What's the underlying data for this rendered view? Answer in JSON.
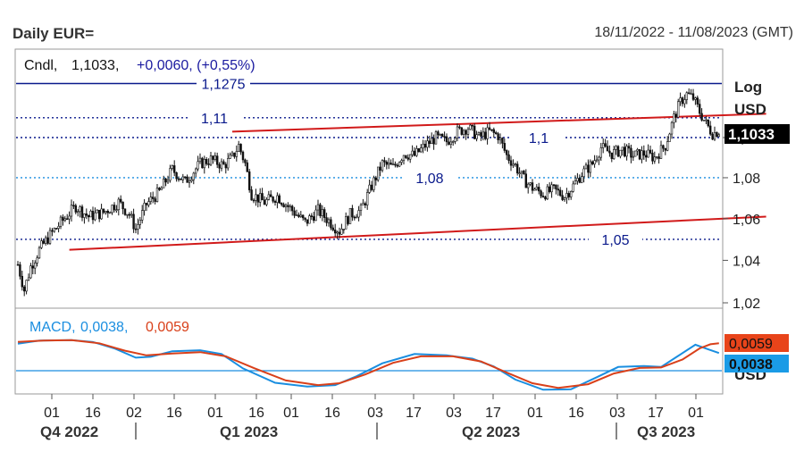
{
  "header": {
    "title": "Daily EUR=",
    "date_range": "18/11/2022 - 11/08/2023 (GMT)"
  },
  "main_panel": {
    "legend_prefix": "Cndl,",
    "legend_close": "1,1033,",
    "legend_change": "+0,0060, (+0,55%)",
    "log_label": "Log",
    "currency_label": "USD",
    "price_tag": "1,1033",
    "level_labels": {
      "l1": "1,1275",
      "l2": "1,11",
      "l3": "1,1",
      "l4": "1,08",
      "l5": "1,05"
    }
  },
  "macd_panel": {
    "legend_name": "MACD,",
    "legend_macd": "0,0038,",
    "legend_signal": "0,0059",
    "tag_signal": "0,0059",
    "tag_macd": "0,0038",
    "currency_label": "USD"
  },
  "colors": {
    "candles": "#111111",
    "level_line": "#0a1a8c",
    "trend_line": "#d11a1a",
    "macd_line": "#1a8ee0",
    "signal_line": "#d9401a",
    "price_tag_bg": "#000000",
    "signal_tag_bg": "#e8441a",
    "macd_tag_bg": "#1a9be6"
  },
  "chart_data": {
    "type": "candlestick",
    "title": "Daily EUR=",
    "y_scale": "log",
    "ylim": [
      1.014,
      1.136
    ],
    "y_ticks": [
      "1,02",
      "1,04",
      "1,06",
      "1,08",
      "1,1"
    ],
    "x_ticks": [
      "01",
      "16",
      "02",
      "16",
      "01",
      "16",
      "01",
      "16",
      "03",
      "17",
      "03",
      "17",
      "01",
      "16",
      "03",
      "17",
      "01"
    ],
    "period_labels": [
      "Q4 2022",
      "Q1 2023",
      "Q2 2023",
      "Q3 2023"
    ],
    "last_close": 1.1033,
    "change": 0.006,
    "change_pct": 0.55,
    "horizontal_levels": [
      {
        "value": 1.1275,
        "style": "solid",
        "label": "1,1275"
      },
      {
        "value": 1.11,
        "style": "dotted",
        "label": "1,11"
      },
      {
        "value": 1.1,
        "style": "dotted",
        "label": "1,1"
      },
      {
        "value": 1.08,
        "style": "dotted",
        "label": "1,08"
      },
      {
        "value": 1.05,
        "style": "dotted",
        "label": "1,05"
      }
    ],
    "close_path": [
      [
        0,
        1.038
      ],
      [
        3,
        1.026
      ],
      [
        6,
        1.037
      ],
      [
        10,
        1.045
      ],
      [
        15,
        1.052
      ],
      [
        20,
        1.058
      ],
      [
        27,
        1.066
      ],
      [
        33,
        1.061
      ],
      [
        40,
        1.063
      ],
      [
        47,
        1.068
      ],
      [
        52,
        1.062
      ],
      [
        55,
        1.055
      ],
      [
        60,
        1.067
      ],
      [
        66,
        1.073
      ],
      [
        72,
        1.084
      ],
      [
        78,
        1.078
      ],
      [
        85,
        1.087
      ],
      [
        90,
        1.089
      ],
      [
        96,
        1.086
      ],
      [
        100,
        1.09
      ],
      [
        103,
        1.096
      ],
      [
        106,
        1.087
      ],
      [
        109,
        1.072
      ],
      [
        115,
        1.068
      ],
      [
        121,
        1.071
      ],
      [
        128,
        1.064
      ],
      [
        134,
        1.058
      ],
      [
        140,
        1.064
      ],
      [
        146,
        1.058
      ],
      [
        150,
        1.054
      ],
      [
        155,
        1.062
      ],
      [
        160,
        1.064
      ],
      [
        165,
        1.076
      ],
      [
        170,
        1.087
      ],
      [
        175,
        1.085
      ],
      [
        180,
        1.092
      ],
      [
        185,
        1.091
      ],
      [
        190,
        1.096
      ],
      [
        195,
        1.1
      ],
      [
        200,
        1.098
      ],
      [
        205,
        1.103
      ],
      [
        210,
        1.105
      ],
      [
        215,
        1.1
      ],
      [
        220,
        1.103
      ],
      [
        224,
        1.101
      ],
      [
        228,
        1.091
      ],
      [
        232,
        1.086
      ],
      [
        236,
        1.079
      ],
      [
        240,
        1.075
      ],
      [
        245,
        1.072
      ],
      [
        250,
        1.074
      ],
      [
        255,
        1.071
      ],
      [
        259,
        1.076
      ],
      [
        263,
        1.082
      ],
      [
        268,
        1.087
      ],
      [
        272,
        1.095
      ],
      [
        277,
        1.092
      ],
      [
        282,
        1.094
      ],
      [
        287,
        1.091
      ],
      [
        292,
        1.092
      ],
      [
        297,
        1.09
      ],
      [
        302,
        1.096
      ],
      [
        306,
        1.11
      ],
      [
        309,
        1.118
      ],
      [
        312,
        1.122
      ],
      [
        315,
        1.12
      ],
      [
        318,
        1.113
      ],
      [
        321,
        1.107
      ],
      [
        324,
        1.102
      ],
      [
        327,
        1.1033
      ]
    ],
    "resistance_channel_line": [
      [
        100,
        1.103
      ],
      [
        349,
        1.112
      ]
    ],
    "support_channel_line": [
      [
        24,
        1.045
      ],
      [
        349,
        1.061
      ]
    ],
    "macd": {
      "macd_last": 0.0038,
      "signal_last": 0.0059,
      "zero_line": true,
      "macd_path": [
        [
          0,
          0.0058
        ],
        [
          10,
          0.0065
        ],
        [
          25,
          0.0066
        ],
        [
          35,
          0.0062
        ],
        [
          45,
          0.0048
        ],
        [
          55,
          0.0028
        ],
        [
          62,
          0.003
        ],
        [
          72,
          0.0042
        ],
        [
          85,
          0.0044
        ],
        [
          95,
          0.0036
        ],
        [
          105,
          0.0005
        ],
        [
          120,
          -0.0026
        ],
        [
          135,
          -0.0034
        ],
        [
          148,
          -0.0031
        ],
        [
          158,
          -0.0012
        ],
        [
          170,
          0.0016
        ],
        [
          185,
          0.0036
        ],
        [
          200,
          0.0033
        ],
        [
          212,
          0.0026
        ],
        [
          222,
          0.0009
        ],
        [
          232,
          -0.0019
        ],
        [
          245,
          -0.0041
        ],
        [
          258,
          -0.004
        ],
        [
          270,
          -0.0014
        ],
        [
          280,
          0.0008
        ],
        [
          292,
          0.001
        ],
        [
          300,
          0.0008
        ],
        [
          308,
          0.0032
        ],
        [
          316,
          0.0056
        ],
        [
          322,
          0.0046
        ],
        [
          327,
          0.0038
        ]
      ],
      "signal_path": [
        [
          0,
          0.0062
        ],
        [
          12,
          0.0065
        ],
        [
          25,
          0.0066
        ],
        [
          38,
          0.0059
        ],
        [
          50,
          0.0043
        ],
        [
          60,
          0.0033
        ],
        [
          72,
          0.0037
        ],
        [
          85,
          0.004
        ],
        [
          97,
          0.0031
        ],
        [
          110,
          0.0006
        ],
        [
          125,
          -0.0021
        ],
        [
          140,
          -0.0031
        ],
        [
          150,
          -0.0027
        ],
        [
          162,
          -0.0008
        ],
        [
          175,
          0.0017
        ],
        [
          188,
          0.0031
        ],
        [
          203,
          0.0031
        ],
        [
          216,
          0.002
        ],
        [
          228,
          -0.0004
        ],
        [
          240,
          -0.0027
        ],
        [
          252,
          -0.0037
        ],
        [
          266,
          -0.0029
        ],
        [
          278,
          -0.0006
        ],
        [
          290,
          0.0006
        ],
        [
          300,
          0.0007
        ],
        [
          310,
          0.0024
        ],
        [
          318,
          0.0048
        ],
        [
          323,
          0.0057
        ],
        [
          327,
          0.0059
        ]
      ]
    }
  }
}
